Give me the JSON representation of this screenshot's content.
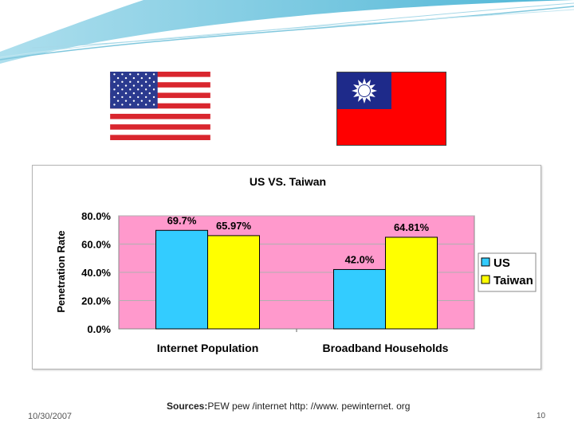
{
  "slide": {
    "date": "10/30/2007",
    "sources_label": "Sources:",
    "sources_text": "PEW pew /internet http: //www. pewinternet. org",
    "page_number": "10"
  },
  "flags": [
    {
      "name": "us-flag"
    },
    {
      "name": "taiwan-flag"
    }
  ],
  "colors": {
    "plot_bg": "#ff99cc",
    "us": "#33ccff",
    "taiwan": "#ffff00",
    "swoosh": "#4db8d6"
  },
  "chart_data": {
    "type": "bar",
    "title": "US VS. Taiwan",
    "xlabel": "",
    "ylabel": "Penetration Rate",
    "categories": [
      "Internet Population",
      "Broadband Households"
    ],
    "series": [
      {
        "name": "US",
        "values": [
          69.7,
          42.0
        ],
        "labels": [
          "69.7%",
          "42.0%"
        ],
        "color": "#33ccff"
      },
      {
        "name": "Taiwan",
        "values": [
          65.97,
          64.81
        ],
        "labels": [
          "65.97%",
          "64.81%"
        ],
        "color": "#ffff00"
      }
    ],
    "ylim": [
      0,
      80
    ],
    "yticks": [
      "0.0%",
      "20.0%",
      "40.0%",
      "60.0%",
      "80.0%"
    ],
    "ytick_values": [
      0,
      20,
      40,
      60,
      80
    ],
    "grid": true,
    "legend": "right"
  }
}
